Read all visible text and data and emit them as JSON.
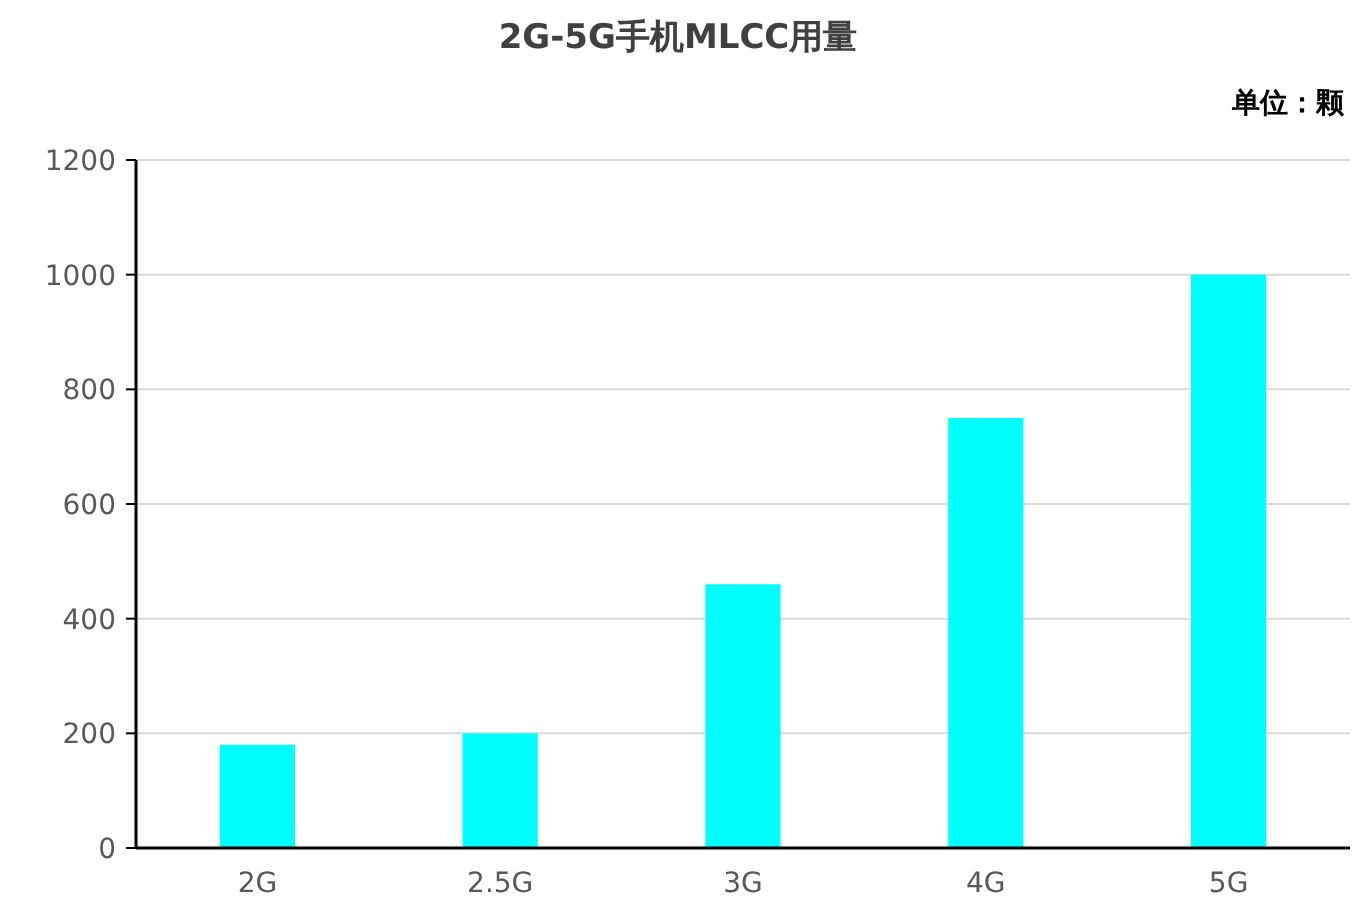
{
  "chart_data": {
    "type": "bar",
    "title": "2G-5G手机MLCC用量",
    "annotations": [
      "单位：颗"
    ],
    "categories": [
      "2G",
      "2.5G",
      "3G",
      "4G",
      "5G"
    ],
    "values": [
      180,
      200,
      460,
      750,
      1000
    ],
    "color": "#00ffff",
    "ylim": [
      0,
      1200
    ],
    "yticks": [
      0,
      200,
      400,
      600,
      800,
      1000,
      1200
    ],
    "grid": "y"
  }
}
